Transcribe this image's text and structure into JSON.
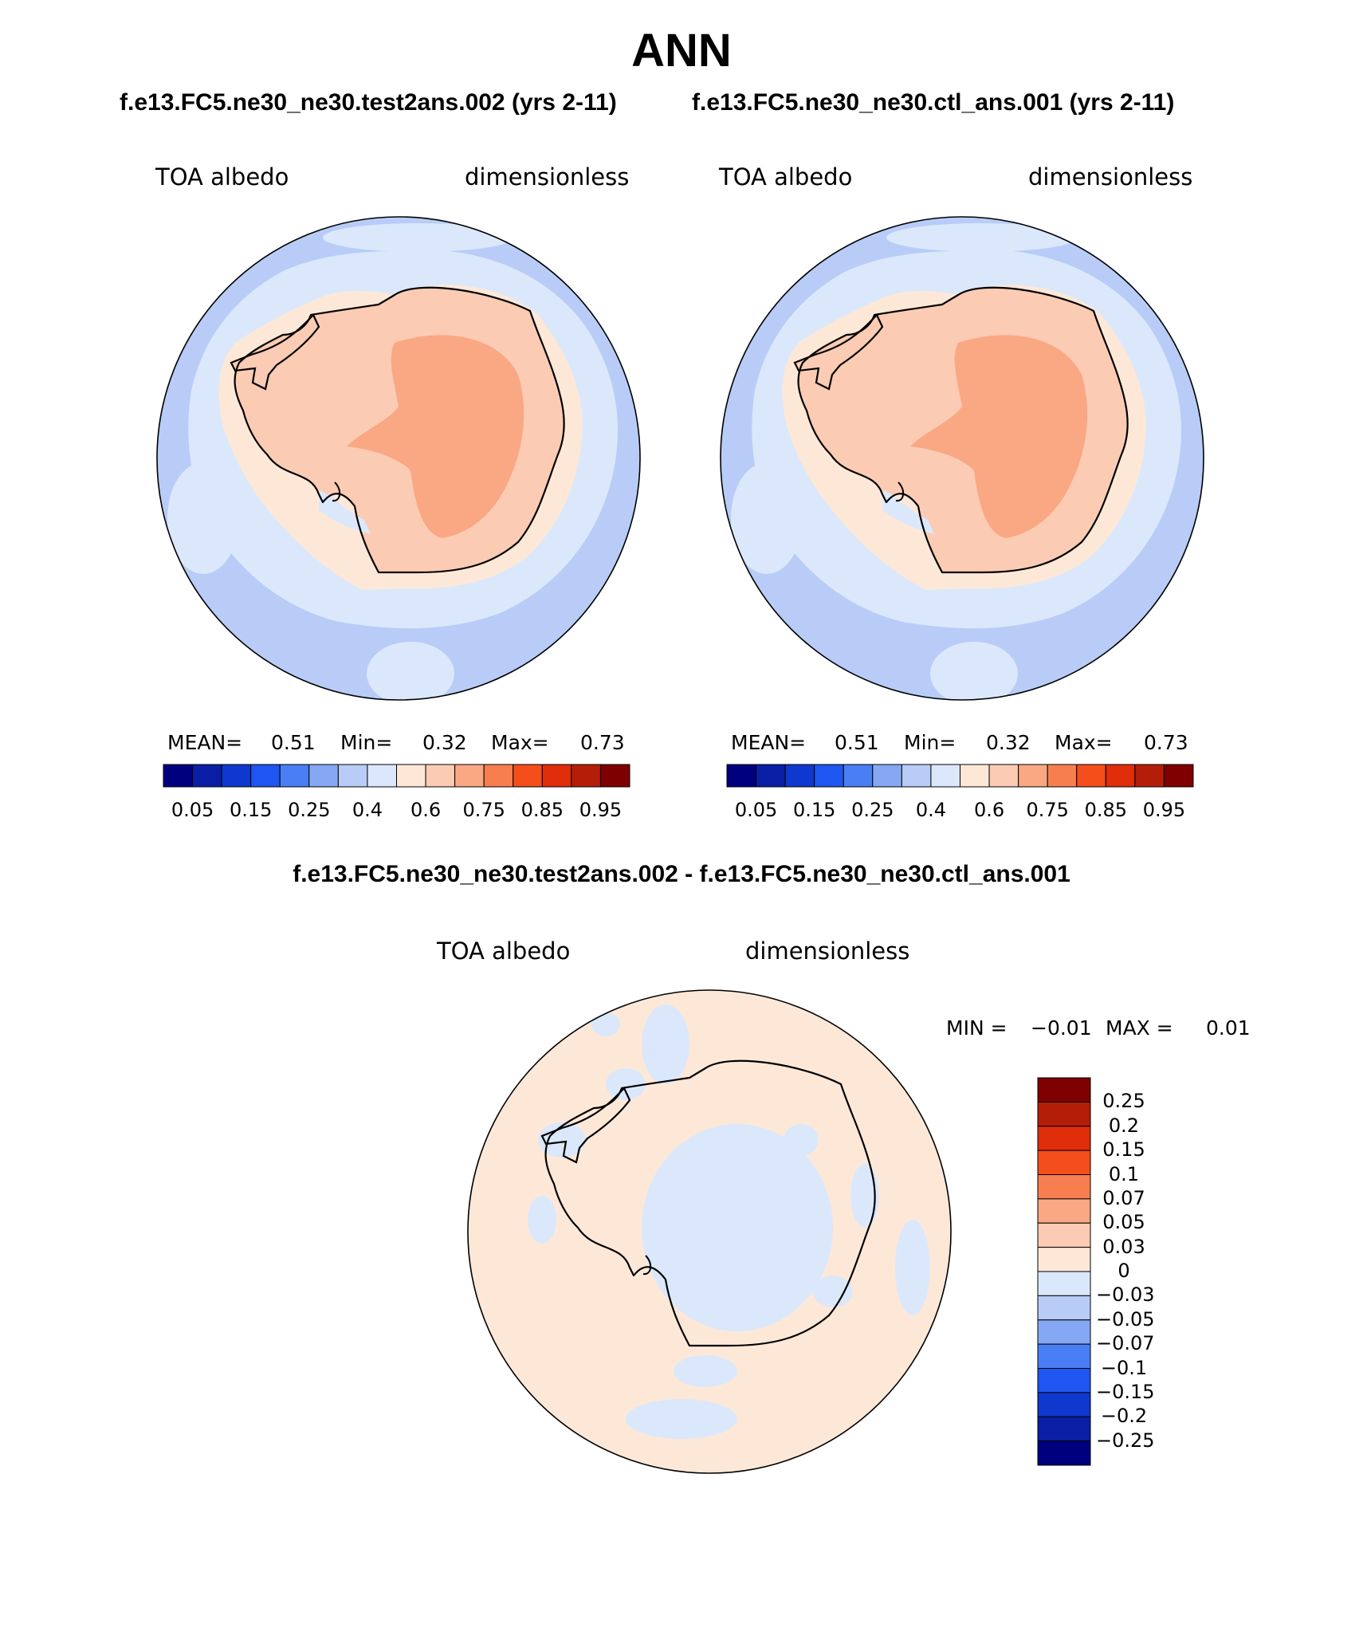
{
  "title": "ANN",
  "cases": {
    "test": "f.e13.FC5.ne30_ne30.test2ans.002 (yrs 2-11)",
    "control": "f.e13.FC5.ne30_ne30.ctl_ans.001 (yrs 2-11)"
  },
  "difference_title": "f.e13.FC5.ne30_ne30.test2ans.002 - f.e13.FC5.ne30_ne30.ctl_ans.001",
  "panels": [
    {
      "variable": "TOA albedo",
      "units": "dimensionless",
      "stats": {
        "mean_label": "MEAN=",
        "mean": "0.51",
        "min_label": "Min=",
        "min": "0.32",
        "max_label": "Max=",
        "max": "0.73"
      }
    },
    {
      "variable": "TOA albedo",
      "units": "dimensionless",
      "stats": {
        "mean_label": "MEAN=",
        "mean": "0.51",
        "min_label": "Min=",
        "min": "0.32",
        "max_label": "Max=",
        "max": "0.73"
      }
    }
  ],
  "colorbar": {
    "ticks": [
      "0.05",
      "0.15",
      "0.25",
      "0.4",
      "0.6",
      "0.75",
      "0.85",
      "0.95"
    ],
    "colors": [
      "#00007f",
      "#0a1fa5",
      "#0f38cf",
      "#1f55f0",
      "#4a7ef5",
      "#86a8f4",
      "#b8ccf7",
      "#dbe8fb",
      "#fde8d8",
      "#fbcbb4",
      "#f9a883",
      "#f77f4f",
      "#f44e1c",
      "#e02d0a",
      "#b41e08",
      "#7f0000"
    ]
  },
  "difference": {
    "variable": "TOA albedo",
    "units": "dimensionless",
    "stats": {
      "min_label": "MIN =",
      "min": "−0.01",
      "max_label": "MAX =",
      "max": "0.01"
    },
    "levels": [
      "0.25",
      "0.2",
      "0.15",
      "0.1",
      "0.07",
      "0.05",
      "0.03",
      "0",
      "−0.03",
      "−0.05",
      "−0.07",
      "−0.1",
      "−0.15",
      "−0.2",
      "−0.25"
    ],
    "colors": [
      "#7f0000",
      "#b41e08",
      "#e02d0a",
      "#f44e1c",
      "#f77f4f",
      "#f9a883",
      "#fbcbb4",
      "#fde8d8",
      "#dbe8fb",
      "#b8ccf7",
      "#86a8f4",
      "#4a7ef5",
      "#1f55f0",
      "#0f38cf",
      "#0a1fa5",
      "#00007f"
    ]
  },
  "map_colors": {
    "ocean_far": "#b8ccf7",
    "ocean_mid": "#dbe8fb",
    "coast": "#fde8d8",
    "land_edge": "#fbcbb4",
    "interior": "#f9a883",
    "diff_background": "#fde8d8",
    "diff_negative": "#dbe8fb"
  }
}
